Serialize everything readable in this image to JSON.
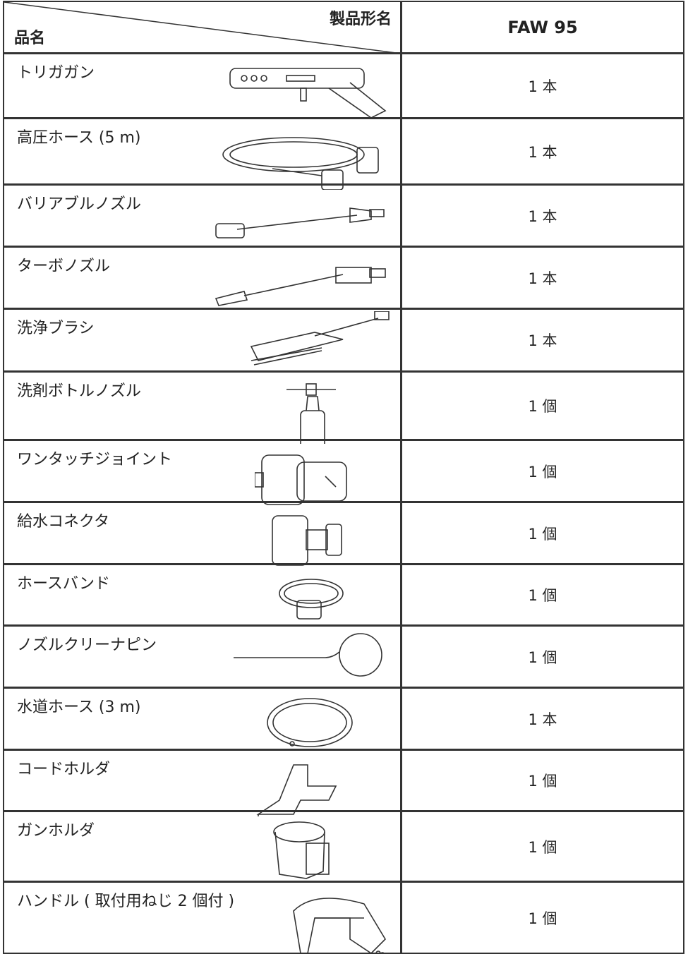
{
  "table": {
    "header": {
      "model_label": "製品形名",
      "name_label": "品名",
      "model": "FAW 95"
    },
    "rows": [
      [
        "トリガガン",
        "1 本"
      ],
      [
        "高圧ホース (5 m)",
        "1 本"
      ],
      [
        "バリアブルノズル",
        "1 本"
      ],
      [
        "ターボノズル",
        "1 本"
      ],
      [
        "洗浄ブラシ",
        "1 本"
      ],
      [
        "洗剤ボトルノズル",
        "1 個"
      ],
      [
        "ワンタッチジョイント",
        "1 個"
      ],
      [
        "給水コネクタ",
        "1 個"
      ],
      [
        "ホースバンド",
        "1 個"
      ],
      [
        "ノズルクリーナピン",
        "1 個"
      ],
      [
        "水道ホース (3 m)",
        "1 本"
      ],
      [
        "コードホルダ",
        "1 個"
      ],
      [
        "ガンホルダ",
        "1 個"
      ],
      [
        "ハンドル ( 取付用ねじ 2 個付 )",
        "1 個"
      ]
    ]
  }
}
